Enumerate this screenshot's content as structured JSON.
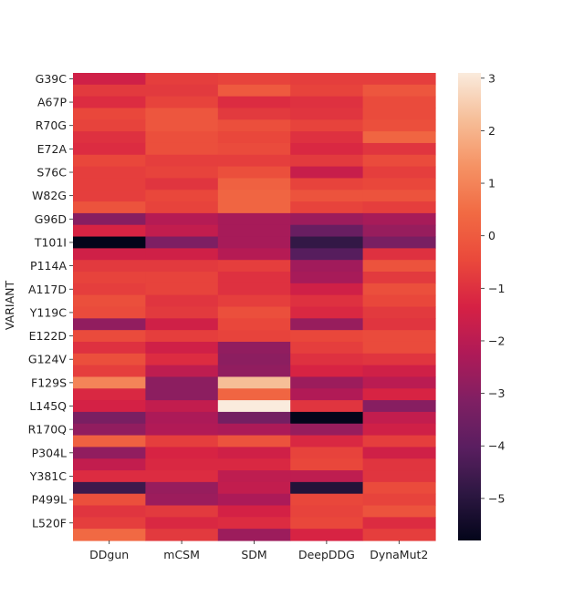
{
  "chart_data": {
    "type": "heatmap",
    "title": "",
    "xlabel": "",
    "ylabel": "VARIANT",
    "columns": [
      "DDgun",
      "mCSM",
      "SDM",
      "DeepDDG",
      "DynaMut2"
    ],
    "row_labels_shown": [
      "G39C",
      "A67P",
      "R70G",
      "E72A",
      "S76C",
      "W82G",
      "G96D",
      "T101I",
      "P114A",
      "A117D",
      "Y119C",
      "E122D",
      "G124V",
      "F129S",
      "L145Q",
      "R170Q",
      "P304L",
      "Y381C",
      "P499L",
      "L520F"
    ],
    "rows_total": 40,
    "colorbar": {
      "min": -5.8,
      "max": 3.1,
      "ticks": [
        3,
        2,
        1,
        0,
        -1,
        -2,
        -3,
        -4,
        -5
      ]
    },
    "values": [
      [
        -1.5,
        -0.7,
        -0.6,
        -0.7,
        -0.7
      ],
      [
        -0.8,
        -0.8,
        0.0,
        -0.6,
        -0.1
      ],
      [
        -1.1,
        -0.6,
        -1.1,
        -1.0,
        -0.4
      ],
      [
        -0.5,
        -0.1,
        -0.8,
        -0.9,
        -0.4
      ],
      [
        -0.6,
        -0.1,
        -0.3,
        -0.6,
        -0.3
      ],
      [
        -1.0,
        -0.3,
        -0.5,
        -1.0,
        0.3
      ],
      [
        -1.1,
        -0.3,
        -0.4,
        -1.2,
        -0.9
      ],
      [
        -0.5,
        -0.7,
        -0.7,
        -0.8,
        -0.4
      ],
      [
        -0.7,
        -0.6,
        -0.3,
        -1.7,
        -0.7
      ],
      [
        -0.7,
        -0.9,
        0.2,
        -0.6,
        -0.5
      ],
      [
        -0.7,
        -0.5,
        0.3,
        -0.2,
        -0.2
      ],
      [
        -0.2,
        -0.6,
        0.3,
        -0.6,
        -0.7
      ],
      [
        -3.0,
        -2.1,
        -2.4,
        -2.6,
        -2.4
      ],
      [
        -1.3,
        -1.8,
        -2.4,
        -3.7,
        -2.7
      ],
      [
        -5.8,
        -3.2,
        -2.4,
        -4.8,
        -3.3
      ],
      [
        -1.5,
        -1.5,
        -2.1,
        -4.1,
        -1.0
      ],
      [
        -0.8,
        -0.8,
        -0.7,
        -2.5,
        -0.2
      ],
      [
        -0.6,
        -0.6,
        -1.0,
        -2.4,
        -0.8
      ],
      [
        -0.7,
        -0.6,
        -1.0,
        -1.5,
        -0.3
      ],
      [
        -0.3,
        -0.9,
        -0.7,
        -1.0,
        -0.5
      ],
      [
        -0.4,
        -0.8,
        -0.3,
        -1.2,
        -0.8
      ],
      [
        -2.8,
        -1.5,
        -0.5,
        -2.7,
        -0.9
      ],
      [
        -0.4,
        -0.7,
        -0.6,
        -0.5,
        -0.4
      ],
      [
        -1.0,
        -1.5,
        -2.8,
        -0.7,
        -0.4
      ],
      [
        -0.3,
        -1.1,
        -2.9,
        -1.0,
        -0.9
      ],
      [
        -0.7,
        -1.9,
        -2.8,
        -1.3,
        -1.5
      ],
      [
        1.0,
        -2.9,
        2.2,
        -2.6,
        -2.0
      ],
      [
        -1.2,
        -2.9,
        0.3,
        -2.2,
        -1.3
      ],
      [
        -1.4,
        -1.8,
        3.1,
        -0.9,
        -3.0
      ],
      [
        -3.3,
        -2.3,
        -3.4,
        -5.8,
        -1.8
      ],
      [
        -2.8,
        -2.2,
        -2.3,
        -2.7,
        -1.5
      ],
      [
        0.2,
        -0.7,
        -0.2,
        -1.2,
        -0.7
      ],
      [
        -2.8,
        -1.3,
        -1.5,
        -0.6,
        -1.5
      ],
      [
        -1.8,
        -1.2,
        -1.2,
        -0.5,
        -0.9
      ],
      [
        -1.1,
        -1.1,
        -1.9,
        -1.9,
        -0.9
      ],
      [
        -4.6,
        -2.7,
        -1.8,
        -5.1,
        -0.4
      ],
      [
        -0.3,
        -2.6,
        -2.3,
        -0.5,
        -0.6
      ],
      [
        -0.9,
        -0.8,
        -1.4,
        -0.6,
        -0.2
      ],
      [
        -0.7,
        -1.2,
        -1.1,
        -0.5,
        -1.1
      ],
      [
        0.4,
        -0.8,
        -2.6,
        -1.3,
        -0.7
      ]
    ]
  }
}
